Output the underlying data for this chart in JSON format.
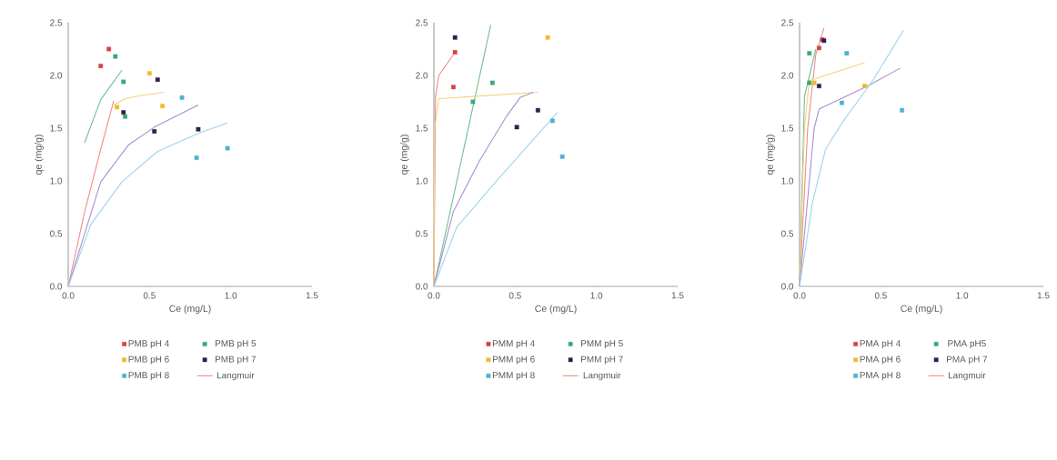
{
  "chart_data": [
    {
      "type": "scatter",
      "xlabel": "Ce (mg/L)",
      "ylabel": "qe (mg/g)",
      "xlim": [
        0,
        1.5
      ],
      "ylim": [
        0,
        2.5
      ],
      "xticks": [
        {
          "value": 0,
          "label": "0.0"
        },
        {
          "value": 0.5,
          "label": "0.5"
        },
        {
          "value": 1,
          "label": "1.0"
        },
        {
          "value": 1.5,
          "label": "1.5"
        }
      ],
      "yticks": [
        {
          "value": 0,
          "label": "0.0"
        },
        {
          "value": 0.5,
          "label": "0.5"
        },
        {
          "value": 1,
          "label": "1.0"
        },
        {
          "value": 1.5,
          "label": "1.5"
        },
        {
          "value": 2,
          "label": "2.0"
        },
        {
          "value": 2.5,
          "label": "2.5"
        }
      ],
      "legend": "bottom",
      "line_style": "solid",
      "grid": false,
      "series": [
        {
          "name": "PMB pH 4",
          "type": "scatter",
          "marker": "square",
          "color": "#d6404a",
          "x": [
            0.2,
            0.25
          ],
          "values": [
            2.09,
            2.25
          ]
        },
        {
          "name": "PMB pH 5",
          "type": "scatter",
          "marker": "square",
          "color": "#3aa87a",
          "x": [
            0.29,
            0.34,
            0.35
          ],
          "values": [
            2.18,
            1.94,
            1.61
          ]
        },
        {
          "name": "PMB pH 6",
          "type": "scatter",
          "marker": "square",
          "color": "#f2b92e",
          "x": [
            0.3,
            0.5,
            0.58
          ],
          "values": [
            1.7,
            2.02,
            1.71
          ]
        },
        {
          "name": "PMB pH 7",
          "type": "scatter",
          "marker": "square",
          "color": "#2e1f4f",
          "x": [
            0.55,
            0.34,
            0.53,
            0.8
          ],
          "values": [
            1.96,
            1.65,
            1.47,
            1.49
          ]
        },
        {
          "name": "PMB pH 8",
          "type": "scatter",
          "marker": "square",
          "color": "#4fb0d6",
          "x": [
            0.7,
            0.79,
            0.98
          ],
          "values": [
            1.79,
            1.22,
            1.31
          ]
        },
        {
          "name": "Langmuir",
          "type": "line",
          "color": "#f08a8a",
          "x": [
            0,
            0.1,
            0.2,
            0.28
          ],
          "values": [
            0,
            0.7,
            1.3,
            1.76
          ]
        },
        {
          "type": "line",
          "color": "#6cc095",
          "x": [
            0.1,
            0.2,
            0.33
          ],
          "values": [
            1.36,
            1.77,
            2.05
          ]
        },
        {
          "type": "line",
          "color": "#f5d27a",
          "x": [
            0.28,
            0.35,
            0.45,
            0.59
          ],
          "values": [
            1.72,
            1.78,
            1.81,
            1.84
          ]
        },
        {
          "type": "line",
          "color": "#a98fd0",
          "x": [
            0,
            0.2,
            0.37,
            0.53,
            0.8
          ],
          "values": [
            0,
            0.99,
            1.34,
            1.51,
            1.72
          ]
        },
        {
          "type": "line",
          "color": "#9fd4ee",
          "x": [
            0,
            0.14,
            0.33,
            0.55,
            0.8,
            0.98
          ],
          "values": [
            0,
            0.59,
            0.99,
            1.28,
            1.45,
            1.55
          ]
        }
      ]
    },
    {
      "type": "scatter",
      "xlabel": "Ce (mg/L)",
      "ylabel": "qe (mg/g)",
      "xlim": [
        0,
        1.5
      ],
      "ylim": [
        0,
        2.5
      ],
      "xticks": [
        {
          "value": 0,
          "label": "0.0"
        },
        {
          "value": 0.5,
          "label": "0.5"
        },
        {
          "value": 1,
          "label": "1.0"
        },
        {
          "value": 1.5,
          "label": "1.5"
        }
      ],
      "yticks": [
        {
          "value": 0,
          "label": "0.0"
        },
        {
          "value": 0.5,
          "label": "0.5"
        },
        {
          "value": 1,
          "label": "1.0"
        },
        {
          "value": 1.5,
          "label": "1.5"
        },
        {
          "value": 2,
          "label": "2.0"
        },
        {
          "value": 2.5,
          "label": "2.5"
        }
      ],
      "legend": "bottom",
      "line_style": "solid",
      "grid": false,
      "series": [
        {
          "name": "PMM pH 4",
          "type": "scatter",
          "marker": "square",
          "color": "#d6404a",
          "x": [
            0.13,
            0.12
          ],
          "values": [
            2.22,
            1.89
          ]
        },
        {
          "name": "PMM pH 5",
          "type": "scatter",
          "marker": "square",
          "color": "#3aa87a",
          "x": [
            0.36,
            0.24
          ],
          "values": [
            1.93,
            1.75
          ]
        },
        {
          "name": "PMM pH 6",
          "type": "scatter",
          "marker": "square",
          "color": "#f2b92e",
          "x": [
            0.7
          ],
          "values": [
            2.36
          ]
        },
        {
          "name": "PMM pH 7",
          "type": "scatter",
          "marker": "square",
          "color": "#2e1f4f",
          "x": [
            0.13,
            0.51,
            0.64
          ],
          "values": [
            2.36,
            1.51,
            1.67
          ]
        },
        {
          "name": "PMM pH 8",
          "type": "scatter",
          "marker": "square",
          "color": "#4fb0d6",
          "x": [
            0.73,
            0.79
          ],
          "values": [
            1.57,
            1.23
          ]
        },
        {
          "name": "Langmuir",
          "type": "line",
          "color": "#f08a8a",
          "x": [
            0,
            0.01,
            0.03,
            0.13
          ],
          "values": [
            0,
            1.8,
            2.0,
            2.22
          ]
        },
        {
          "type": "line",
          "color": "#6cc095",
          "x": [
            0,
            0.35
          ],
          "values": [
            0,
            2.48
          ]
        },
        {
          "type": "line",
          "color": "#f5d27a",
          "x": [
            0,
            0.005,
            0.03,
            0.64
          ],
          "values": [
            0,
            1.5,
            1.78,
            1.84
          ]
        },
        {
          "type": "line",
          "color": "#a98fd0",
          "x": [
            0,
            0.12,
            0.28,
            0.45,
            0.53,
            0.61
          ],
          "values": [
            0,
            0.71,
            1.19,
            1.62,
            1.79,
            1.84
          ]
        },
        {
          "type": "line",
          "color": "#9fd4ee",
          "x": [
            0,
            0.14,
            0.38,
            0.76
          ],
          "values": [
            0,
            0.56,
            0.99,
            1.65
          ]
        }
      ]
    },
    {
      "type": "scatter",
      "xlabel": "Ce (mg/L)",
      "ylabel": "qe (mg/g)",
      "xlim": [
        0,
        1.5
      ],
      "ylim": [
        0,
        2.5
      ],
      "xticks": [
        {
          "value": 0,
          "label": "0.0"
        },
        {
          "value": 0.5,
          "label": "0.5"
        },
        {
          "value": 1,
          "label": "1.0"
        },
        {
          "value": 1.5,
          "label": "1.5"
        }
      ],
      "yticks": [
        {
          "value": 0,
          "label": "0.0"
        },
        {
          "value": 0.5,
          "label": "0.5"
        },
        {
          "value": 1,
          "label": "1.0"
        },
        {
          "value": 1.5,
          "label": "1.5"
        },
        {
          "value": 2,
          "label": "2.0"
        },
        {
          "value": 2.5,
          "label": "2.5"
        }
      ],
      "legend": "bottom",
      "line_style": "solid",
      "grid": false,
      "series": [
        {
          "name": "PMA pH 4",
          "type": "scatter",
          "marker": "square",
          "color": "#d6404a",
          "x": [
            0.14,
            0.12
          ],
          "values": [
            2.34,
            2.26
          ]
        },
        {
          "name": "PMA pH5",
          "type": "scatter",
          "marker": "square",
          "color": "#3aa87a",
          "x": [
            0.06,
            0.06
          ],
          "values": [
            2.21,
            1.93
          ]
        },
        {
          "name": "PMA pH 6",
          "type": "scatter",
          "marker": "square",
          "color": "#f2b92e",
          "x": [
            0.4,
            0.09
          ],
          "values": [
            1.9,
            1.93
          ]
        },
        {
          "name": "PMA pH 7",
          "type": "scatter",
          "marker": "square",
          "color": "#2e1f4f",
          "x": [
            0.12,
            0.15
          ],
          "values": [
            1.9,
            2.33
          ]
        },
        {
          "name": "PMA pH 8",
          "type": "scatter",
          "marker": "square",
          "color": "#4fb0d6",
          "x": [
            0.29,
            0.26,
            0.63
          ],
          "values": [
            2.21,
            1.74,
            1.67
          ]
        },
        {
          "name": "Langmuir",
          "type": "line",
          "color": "#f08a8a",
          "x": [
            0,
            0.05,
            0.1,
            0.15
          ],
          "values": [
            0,
            1.5,
            2.2,
            2.45
          ]
        },
        {
          "type": "line",
          "color": "#6cc095",
          "x": [
            0,
            0.03,
            0.1
          ],
          "values": [
            0,
            1.8,
            2.25
          ]
        },
        {
          "type": "line",
          "color": "#f5d27a",
          "x": [
            0,
            0.03,
            0.06,
            0.4
          ],
          "values": [
            0,
            1.5,
            1.95,
            2.12
          ]
        },
        {
          "type": "line",
          "color": "#a98fd0",
          "x": [
            0,
            0.09,
            0.12,
            0.42,
            0.62
          ],
          "values": [
            0,
            1.5,
            1.68,
            1.9,
            2.07
          ]
        },
        {
          "type": "line",
          "color": "#9fd4ee",
          "x": [
            0,
            0.08,
            0.16,
            0.27,
            0.45,
            0.64
          ],
          "values": [
            0,
            0.8,
            1.3,
            1.57,
            1.95,
            2.43
          ]
        }
      ]
    }
  ]
}
